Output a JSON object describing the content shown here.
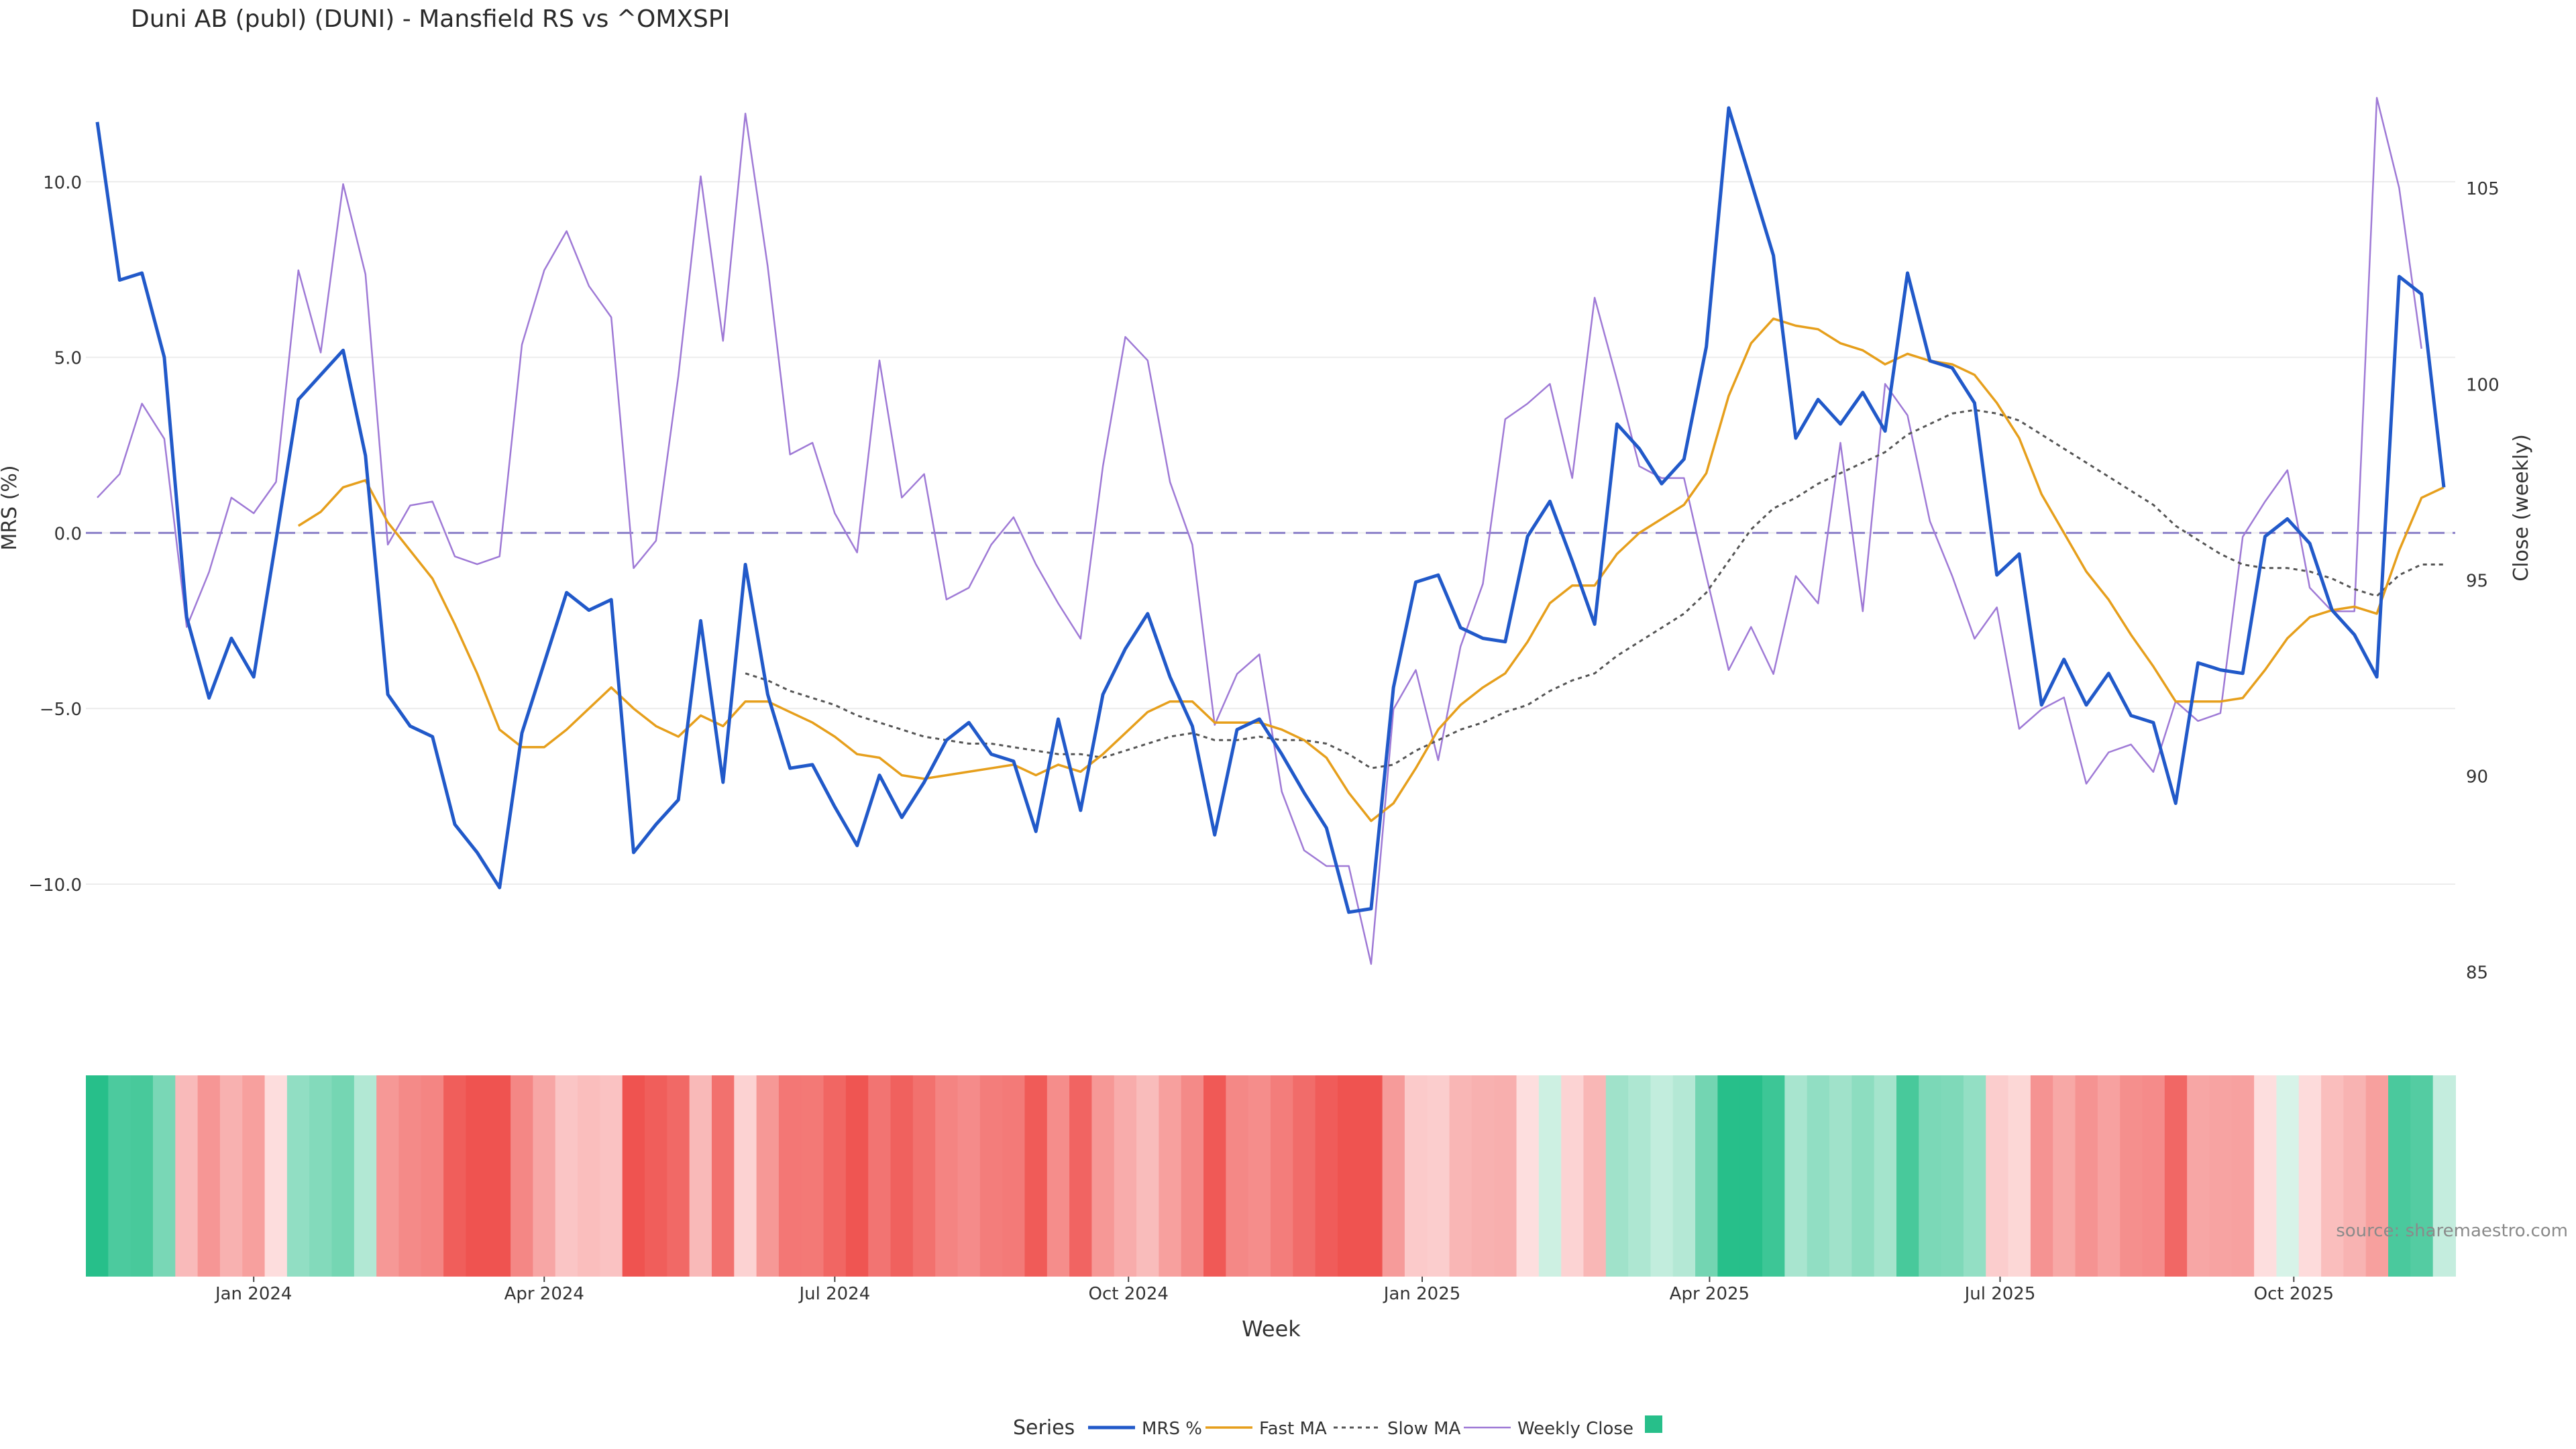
{
  "title": "Duni AB (publ) (DUNI) - Mansfield RS vs ^OMXSPI",
  "source": "source: sharemaestro.com",
  "legend": {
    "title": "Series",
    "mrs": "MRS %",
    "fast": "Fast MA",
    "slow": "Slow MA",
    "close": "Weekly Close"
  },
  "axes": {
    "ylabel_left": "MRS (%)",
    "ylabel_right": "Close (weekly)",
    "xlabel": "Week"
  },
  "colors": {
    "mrs": "#2159c9",
    "fast": "#e69f1c",
    "slow": "#555555",
    "close": "#9f7ad6",
    "zero": "#8a7fc7",
    "heat_pos": "#27bf8a",
    "heat_neg": "#ef5350"
  },
  "chart_data": {
    "type": "line",
    "x_start": "2023-11-13",
    "x_interval_days": 7,
    "x_ticks": [
      "Jan 2024",
      "Apr 2024",
      "Jul 2024",
      "Oct 2024",
      "Jan 2025",
      "Apr 2025",
      "Jul 2025",
      "Oct 2025"
    ],
    "x_tick_dates": [
      "2024-01-01",
      "2024-04-01",
      "2024-07-01",
      "2024-10-01",
      "2025-01-01",
      "2025-04-01",
      "2025-07-01",
      "2025-10-01"
    ],
    "y_left_ticks": [
      "10.0",
      "5.0",
      "0.0",
      "−5.0",
      "−10.0"
    ],
    "y_left_tick_values": [
      10,
      5,
      0,
      -5,
      -10
    ],
    "y_left_range": [
      -13.0,
      12.5
    ],
    "y_right_ticks": [
      "105",
      "100",
      "95",
      "90",
      "85"
    ],
    "y_right_tick_values": [
      105,
      100,
      95,
      90,
      85
    ],
    "y_right_range": [
      84.55,
      107.4
    ],
    "zero_line": 0,
    "series": [
      {
        "name": "MRS %",
        "values": [
          11.7,
          7.2,
          7.4,
          5.0,
          -2.4,
          -4.7,
          -3.0,
          -4.1,
          -0.2,
          3.8,
          4.5,
          5.2,
          2.2,
          -4.6,
          -5.5,
          -5.8,
          -8.3,
          -9.1,
          -10.1,
          -5.7,
          -3.7,
          -1.7,
          -2.2,
          -1.9,
          -9.1,
          -8.3,
          -7.6,
          -2.5,
          -7.1,
          -0.9,
          -4.6,
          -6.7,
          -6.6,
          -7.8,
          -8.9,
          -6.9,
          -8.1,
          -7.1,
          -5.9,
          -5.4,
          -6.3,
          -6.5,
          -8.5,
          -5.3,
          -7.9,
          -4.6,
          -3.3,
          -2.3,
          -4.1,
          -5.5,
          -8.6,
          -5.6,
          -5.3,
          -6.3,
          -7.4,
          -8.4,
          -10.8,
          -10.7,
          -4.4,
          -1.4,
          -1.2,
          -2.7,
          -3.0,
          -3.1,
          -0.1,
          0.9,
          -0.8,
          -2.6,
          3.1,
          2.4,
          1.4,
          2.1,
          5.3,
          12.1,
          10.0,
          7.9,
          2.7,
          3.8,
          3.1,
          4.0,
          2.9,
          7.4,
          4.9,
          4.7,
          3.7,
          -1.2,
          -0.6,
          -4.9,
          -3.6,
          -4.9,
          -4.0,
          -5.2,
          -5.4,
          -7.7,
          -3.7,
          -3.9,
          -4.0,
          -0.1,
          0.4,
          -0.3,
          -2.2,
          -2.9,
          -4.1,
          7.3,
          6.8,
          1.3
        ]
      },
      {
        "name": "Fast MA",
        "values": [
          null,
          null,
          null,
          null,
          null,
          null,
          null,
          null,
          null,
          0.2,
          0.6,
          1.3,
          1.5,
          0.3,
          -0.5,
          -1.3,
          -2.6,
          -4.0,
          -5.6,
          -6.1,
          -6.1,
          -5.6,
          -5.0,
          -4.4,
          -5.0,
          -5.5,
          -5.8,
          -5.2,
          -5.5,
          -4.8,
          -4.8,
          -5.1,
          -5.4,
          -5.8,
          -6.3,
          -6.4,
          -6.9,
          -7.0,
          -6.9,
          -6.8,
          -6.7,
          -6.6,
          -6.9,
          -6.6,
          -6.8,
          -6.3,
          -5.7,
          -5.1,
          -4.8,
          -4.8,
          -5.4,
          -5.4,
          -5.4,
          -5.6,
          -5.9,
          -6.4,
          -7.4,
          -8.2,
          -7.7,
          -6.7,
          -5.6,
          -4.9,
          -4.4,
          -4.0,
          -3.1,
          -2.0,
          -1.5,
          -1.5,
          -0.6,
          0.0,
          0.4,
          0.8,
          1.7,
          3.9,
          5.4,
          6.1,
          5.9,
          5.8,
          5.4,
          5.2,
          4.8,
          5.1,
          4.9,
          4.8,
          4.5,
          3.7,
          2.7,
          1.1,
          0.0,
          -1.1,
          -1.9,
          -2.9,
          -3.8,
          -4.8,
          -4.8,
          -4.8,
          -4.7,
          -3.9,
          -3.0,
          -2.4,
          -2.2,
          -2.1,
          -2.3,
          -0.5,
          1.0,
          1.3
        ]
      },
      {
        "name": "Slow MA",
        "values": [
          null,
          null,
          null,
          null,
          null,
          null,
          null,
          null,
          null,
          null,
          null,
          null,
          null,
          null,
          null,
          null,
          null,
          null,
          null,
          null,
          null,
          null,
          null,
          null,
          null,
          null,
          null,
          null,
          null,
          -4.0,
          -4.2,
          -4.5,
          -4.7,
          -4.9,
          -5.2,
          -5.4,
          -5.6,
          -5.8,
          -5.9,
          -6.0,
          -6.0,
          -6.1,
          -6.2,
          -6.3,
          -6.3,
          -6.4,
          -6.2,
          -6.0,
          -5.8,
          -5.7,
          -5.9,
          -5.9,
          -5.8,
          -5.9,
          -5.9,
          -6.0,
          -6.3,
          -6.7,
          -6.6,
          -6.2,
          -5.9,
          -5.6,
          -5.4,
          -5.1,
          -4.9,
          -4.5,
          -4.2,
          -4.0,
          -3.5,
          -3.1,
          -2.7,
          -2.3,
          -1.7,
          -0.8,
          0.1,
          0.7,
          1.0,
          1.4,
          1.7,
          2.0,
          2.3,
          2.8,
          3.1,
          3.4,
          3.5,
          3.4,
          3.2,
          2.8,
          2.4,
          2.0,
          1.6,
          1.2,
          0.8,
          0.2,
          -0.2,
          -0.6,
          -0.9,
          -1.0,
          -1.0,
          -1.1,
          -1.3,
          -1.6,
          -1.8,
          -1.2,
          -0.9,
          -0.9
        ]
      },
      {
        "name": "Weekly Close",
        "values": [
          97.1,
          97.7,
          99.5,
          98.6,
          93.8,
          95.2,
          97.1,
          96.7,
          97.5,
          102.9,
          100.8,
          105.1,
          102.8,
          95.9,
          96.9,
          97.0,
          95.6,
          95.4,
          95.6,
          101.0,
          102.9,
          103.9,
          102.5,
          101.7,
          95.3,
          96.0,
          100.2,
          105.3,
          101.1,
          106.9,
          103.0,
          98.2,
          98.5,
          96.7,
          95.7,
          100.6,
          97.1,
          97.7,
          94.5,
          94.8,
          95.9,
          96.6,
          95.4,
          94.4,
          93.5,
          97.9,
          101.2,
          100.6,
          97.5,
          95.9,
          91.3,
          92.6,
          93.1,
          89.6,
          88.1,
          87.7,
          87.7,
          85.2,
          91.7,
          92.7,
          90.4,
          93.3,
          94.9,
          99.1,
          99.5,
          100.0,
          97.6,
          102.2,
          100.1,
          97.9,
          97.6,
          97.6,
          95.1,
          92.7,
          93.8,
          92.6,
          95.1,
          94.4,
          98.5,
          94.2,
          100.0,
          99.2,
          96.5,
          95.1,
          93.5,
          94.3,
          91.2,
          91.7,
          92.0,
          89.8,
          90.6,
          90.8,
          90.1,
          91.9,
          91.4,
          91.6,
          96.1,
          97.0,
          97.8,
          94.8,
          94.2,
          94.2,
          107.3,
          105.0,
          100.9
        ]
      }
    ],
    "heatmap_mrs_bands": true,
    "legend_position": "bottom-center"
  }
}
